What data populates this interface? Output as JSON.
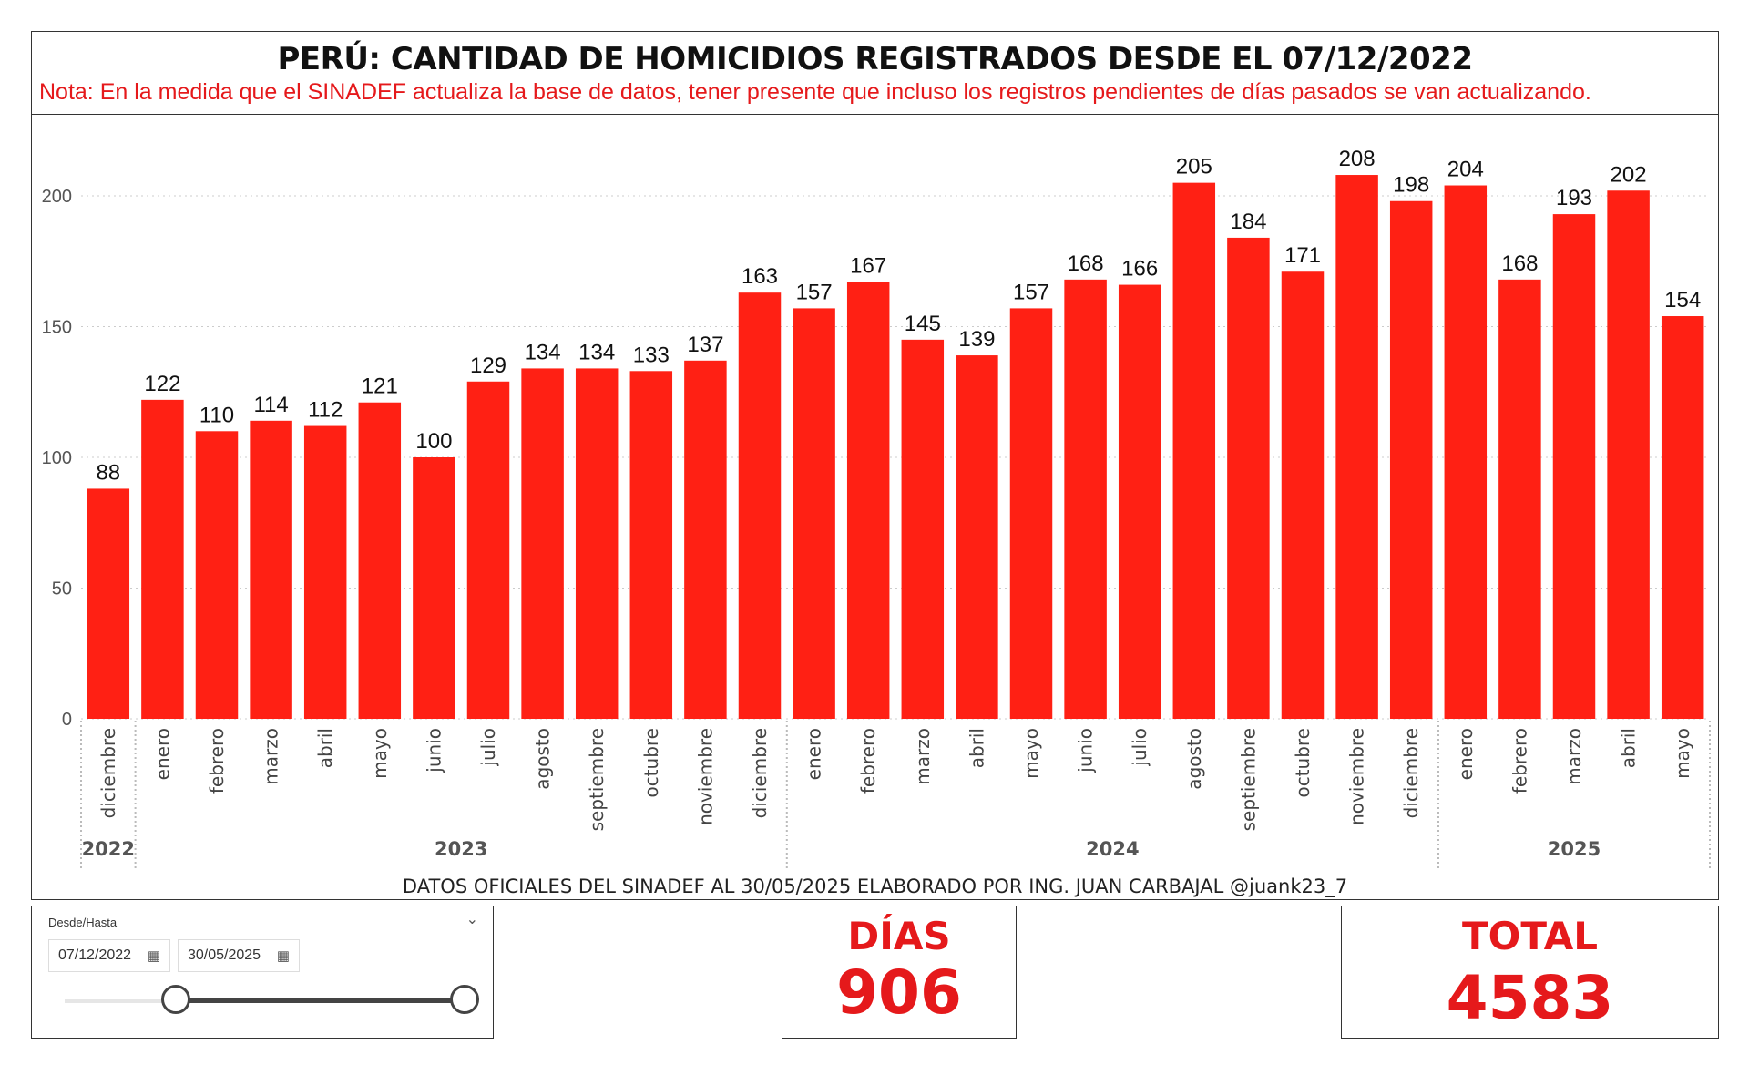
{
  "title": "PERÚ: CANTIDAD DE HOMICIDIOS REGISTRADOS DESDE EL 07/12/2022",
  "note": "Nota: En la medida que el SINADEF actualiza la base de datos, tener presente que incluso los registros pendientes de días pasados se van actualizando.",
  "footer": "DATOS OFICIALES DEL SINADEF AL 30/05/2025 ELABORADO POR ING. JUAN CARBAJAL @juank23_7",
  "colors": {
    "bar": "#ff2014",
    "accent": "#e5191b",
    "grid": "#cccccc"
  },
  "chart_data": {
    "type": "bar",
    "title": "PERÚ: CANTIDAD DE HOMICIDIOS REGISTRADOS DESDE EL 07/12/2022",
    "ylim": [
      0,
      200
    ],
    "yticks": [
      0,
      50,
      100,
      150,
      200
    ],
    "grid": true,
    "categories": [
      "diciembre",
      "enero",
      "febrero",
      "marzo",
      "abril",
      "mayo",
      "junio",
      "julio",
      "agosto",
      "septiembre",
      "octubre",
      "noviembre",
      "diciembre",
      "enero",
      "febrero",
      "marzo",
      "abril",
      "mayo",
      "junio",
      "julio",
      "agosto",
      "septiembre",
      "octubre",
      "noviembre",
      "diciembre",
      "enero",
      "febrero",
      "marzo",
      "abril",
      "mayo"
    ],
    "values": [
      88,
      122,
      110,
      114,
      112,
      121,
      100,
      129,
      134,
      134,
      133,
      137,
      163,
      157,
      167,
      145,
      139,
      157,
      168,
      166,
      205,
      184,
      171,
      208,
      198,
      204,
      168,
      193,
      202,
      154
    ],
    "years": [
      {
        "label": "2022",
        "count": 1
      },
      {
        "label": "2023",
        "count": 12
      },
      {
        "label": "2024",
        "count": 12
      },
      {
        "label": "2025",
        "count": 5
      }
    ]
  },
  "slicer": {
    "title": "Desde/Hasta",
    "chevron_icon": "chevron-down-icon",
    "calendar_icon": "calendar-icon",
    "from": "07/12/2022",
    "to": "30/05/2025",
    "range_fraction": [
      0,
      1
    ]
  },
  "cards": {
    "days_label": "DÍAS",
    "days_value": "906",
    "total_label": "TOTAL",
    "total_value": "4583"
  }
}
